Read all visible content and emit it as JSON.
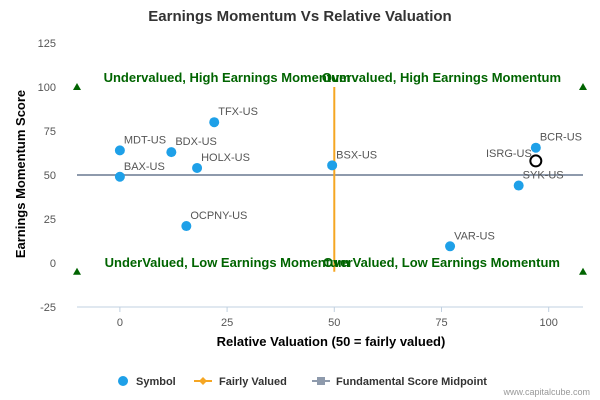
{
  "chart_data": {
    "type": "scatter",
    "title": "Earnings Momentum Vs Relative Valuation",
    "xlabel": "Relative Valuation (50 = fairly valued)",
    "ylabel": "Earnings Momentum Score",
    "xlim": [
      -10,
      108
    ],
    "ylim": [
      -25,
      125
    ],
    "x_ticks": [
      0,
      25,
      50,
      75,
      100
    ],
    "y_ticks": [
      -25,
      0,
      25,
      50,
      75,
      100,
      125
    ],
    "grid": false,
    "legend_position": "bottom",
    "series": [
      {
        "name": "Symbol",
        "color": "#1ea0e8",
        "points": [
          {
            "label": "TFX-US",
            "x": 22,
            "y": 80
          },
          {
            "label": "MDT-US",
            "x": 0,
            "y": 64
          },
          {
            "label": "BDX-US",
            "x": 12,
            "y": 63
          },
          {
            "label": "HOLX-US",
            "x": 18,
            "y": 54
          },
          {
            "label": "BAX-US",
            "x": 0,
            "y": 49
          },
          {
            "label": "OCPNY-US",
            "x": 15.5,
            "y": 21
          },
          {
            "label": "BSX-US",
            "x": 49.5,
            "y": 55.5
          },
          {
            "label": "VAR-US",
            "x": 77,
            "y": 9.5
          },
          {
            "label": "BCR-US",
            "x": 97,
            "y": 65.5
          },
          {
            "label": "SYK-US",
            "x": 93,
            "y": 44
          }
        ]
      },
      {
        "name": "Fairly Valued",
        "color": "#f5a623",
        "x": 50,
        "y_range": [
          -5,
          100
        ]
      },
      {
        "name": "Fundamental Score Midpoint",
        "color": "#8e9aac",
        "y": 50,
        "x_range": [
          -10,
          108
        ]
      }
    ],
    "highlight": {
      "label": "ISRG-US",
      "x": 97,
      "y": 58
    },
    "quadrant_labels": [
      {
        "text": "Undervalued, High Earnings Momentum",
        "x": 25,
        "y": 105
      },
      {
        "text": "Overvalued, High Earnings Momentum",
        "x": 75,
        "y": 105
      },
      {
        "text": "UnderValued, Low Earnings Momentum",
        "x": 25,
        "y": 0
      },
      {
        "text": "OverValued, Low Earnings Momentum",
        "x": 75,
        "y": 0
      }
    ],
    "corner_markers": [
      {
        "x": -10,
        "y": 100
      },
      {
        "x": 108,
        "y": 100
      },
      {
        "x": -10,
        "y": -5
      },
      {
        "x": 108,
        "y": -5
      }
    ],
    "marker_color": "#006400"
  },
  "credit": "www.capitalcube.com"
}
